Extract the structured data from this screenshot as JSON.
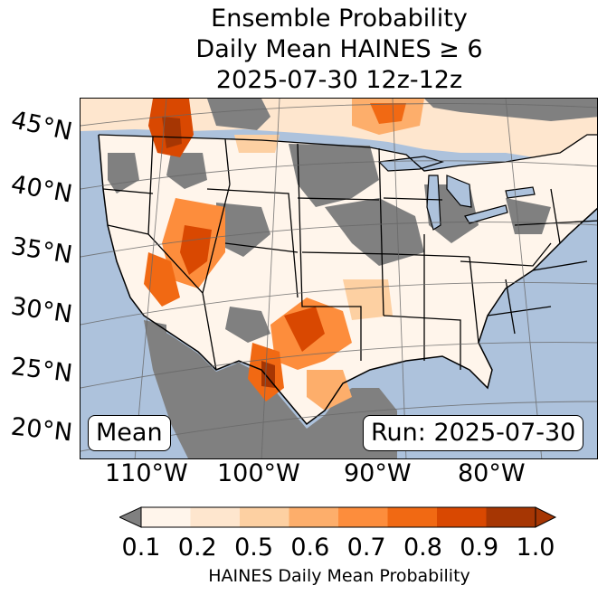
{
  "title": {
    "line1": "Ensemble Probability",
    "line2": "Daily Mean HAINES ≥ 6",
    "line3": "2025-07-30 12z-12z"
  },
  "latitude_labels": [
    "45°N",
    "40°N",
    "35°N",
    "30°N",
    "25°N",
    "20°N"
  ],
  "longitude_labels": [
    "110°W",
    "100°W",
    "90°W",
    "80°W"
  ],
  "panel": {
    "stat_label": "Mean",
    "run_label": "Run: 2025-07-30"
  },
  "colorbar": {
    "ticks": [
      "0.1",
      "0.2",
      "0.5",
      "0.6",
      "0.7",
      "0.8",
      "0.9",
      "1.0"
    ],
    "label": "HAINES Daily Mean Probability",
    "under_color": "#808080",
    "colors": [
      "#fff5eb",
      "#fee6ce",
      "#fdd0a2",
      "#fdae6b",
      "#fd8d3c",
      "#f16913",
      "#d94801",
      "#a63603"
    ]
  },
  "map_colors": {
    "ocean": "#adc2dc",
    "no_data": "#808080",
    "land_low": "#fff5eb"
  }
}
